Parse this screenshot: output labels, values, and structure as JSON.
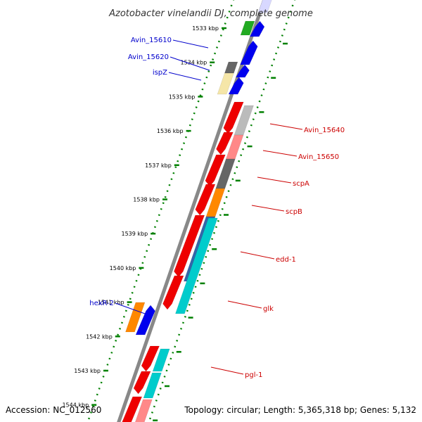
{
  "title": "Azotobacter vinelandii DJ, complete genome",
  "footer": {
    "accession": "Accession: NC_012560",
    "topology": "Topology: circular; Length: 5,365,318 bp; Genes: 5,132"
  },
  "colors": {
    "forward_label": "#0000cc",
    "reverse_label": "#cc0000",
    "backbone": "#888888",
    "ruler_dots": "#008000",
    "red": "#ee0000",
    "blue": "#0000ee",
    "cyan": "#00cccc",
    "orange": "#ff8800",
    "dark_gray": "#666666",
    "light_gray": "#bbbbbb",
    "pink": "#ff8888",
    "pale_yellow": "#f5e6a8",
    "green": "#22aa22"
  },
  "ticks": [
    "1533 kbp",
    "1534 kbp",
    "1535 kbp",
    "1536 kbp",
    "1537 kbp",
    "1538 kbp",
    "1539 kbp",
    "1540 kbp",
    "1541 kbp",
    "1542 kbp",
    "1543 kbp",
    "1544 kbp"
  ],
  "forward_labels": [
    "Avin_15610",
    "Avin_15620",
    "ispZ",
    "hexR-2"
  ],
  "reverse_labels": [
    "Avin_15640",
    "Avin_15650",
    "scpA",
    "scpB",
    "edd-1",
    "glk",
    "pgl-1"
  ]
}
